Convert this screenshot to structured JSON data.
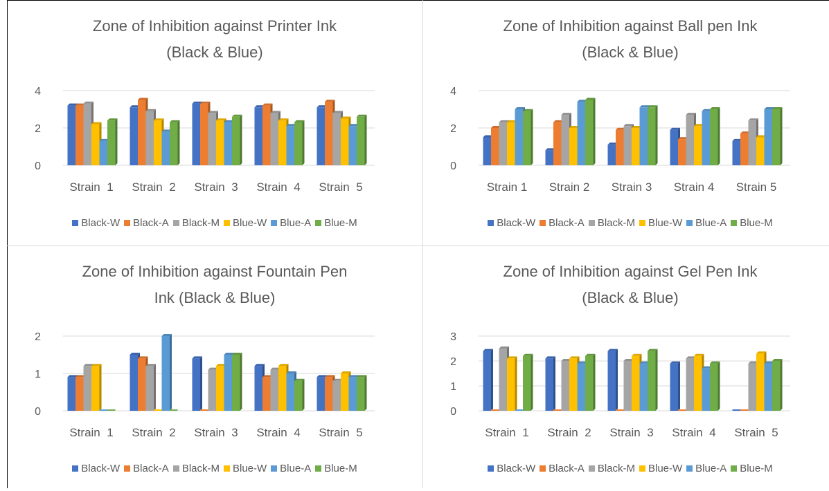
{
  "series_names": [
    "Black-W",
    "Black-A",
    "Black-M",
    "Blue-W",
    "Blue-A",
    "Blue-M"
  ],
  "colors": [
    "#4472C4",
    "#ED7D31",
    "#A5A5A5",
    "#FFC000",
    "#5B9BD5",
    "#70AD47"
  ],
  "chart_data": [
    {
      "type": "bar",
      "title_lines": [
        "Zone of Inhibition against Printer Ink",
        "(Black & Blue)"
      ],
      "categories": [
        "Strain  1",
        "Strain  2",
        "Strain  3",
        "Strain  4",
        "Strain  5"
      ],
      "ylim": [
        0,
        4
      ],
      "yticks": [
        "0",
        "2",
        "4"
      ],
      "legend": "bottom",
      "series": [
        {
          "name": "Black-W",
          "values": [
            3.2,
            3.1,
            3.3,
            3.1,
            3.1
          ]
        },
        {
          "name": "Black-A",
          "values": [
            3.2,
            3.5,
            3.3,
            3.2,
            3.4
          ]
        },
        {
          "name": "Black-M",
          "values": [
            3.3,
            2.9,
            2.8,
            2.8,
            2.8
          ]
        },
        {
          "name": "Blue-W",
          "values": [
            2.2,
            2.4,
            2.4,
            2.4,
            2.5
          ]
        },
        {
          "name": "Blue-A",
          "values": [
            1.3,
            1.8,
            2.3,
            2.1,
            2.1
          ]
        },
        {
          "name": "Blue-M",
          "values": [
            2.4,
            2.3,
            2.6,
            2.3,
            2.6
          ]
        }
      ]
    },
    {
      "type": "bar",
      "title_lines": [
        "Zone of Inhibition against Ball pen Ink",
        "(Black & Blue)"
      ],
      "categories": [
        "Strain 1",
        "Strain 2",
        "Strain 3",
        "Strain 4",
        "Strain 5"
      ],
      "ylim": [
        0,
        4
      ],
      "yticks": [
        "0",
        "2",
        "4"
      ],
      "legend": "bottom",
      "series": [
        {
          "name": "Black-W",
          "values": [
            1.5,
            0.8,
            1.1,
            1.9,
            1.3
          ]
        },
        {
          "name": "Black-A",
          "values": [
            2.0,
            2.3,
            1.9,
            1.4,
            1.7
          ]
        },
        {
          "name": "Black-M",
          "values": [
            2.3,
            2.7,
            2.1,
            2.7,
            2.4
          ]
        },
        {
          "name": "Blue-W",
          "values": [
            2.3,
            2.0,
            2.0,
            2.1,
            1.5
          ]
        },
        {
          "name": "Blue-A",
          "values": [
            3.0,
            3.4,
            3.1,
            2.9,
            3.0
          ]
        },
        {
          "name": "Blue-M",
          "values": [
            2.9,
            3.5,
            3.1,
            3.0,
            3.0
          ]
        }
      ]
    },
    {
      "type": "bar",
      "title_lines": [
        "Zone of Inhibition against Fountain Pen",
        "Ink (Black & Blue)"
      ],
      "categories": [
        "Strain  1",
        "Strain  2",
        "Strain  3",
        "Strain  4",
        "Strain  5"
      ],
      "ylim": [
        0,
        2
      ],
      "yticks": [
        "0",
        "1",
        "2"
      ],
      "legend": "bottom",
      "series": [
        {
          "name": "Black-W",
          "values": [
            0.9,
            1.5,
            1.4,
            1.2,
            0.9
          ]
        },
        {
          "name": "Black-A",
          "values": [
            0.9,
            1.4,
            0,
            0.9,
            0.9
          ]
        },
        {
          "name": "Black-M",
          "values": [
            1.2,
            1.2,
            1.1,
            1.1,
            0.8
          ]
        },
        {
          "name": "Blue-W",
          "values": [
            1.2,
            0,
            1.2,
            1.2,
            1.0
          ]
        },
        {
          "name": "Blue-A",
          "values": [
            0,
            2.0,
            1.5,
            1.0,
            0.9
          ]
        },
        {
          "name": "Blue-M",
          "values": [
            0,
            0,
            1.5,
            0.8,
            0.9
          ]
        }
      ]
    },
    {
      "type": "bar",
      "title_lines": [
        "Zone of Inhibition against Gel Pen Ink",
        "(Black & Blue)"
      ],
      "categories": [
        "Strain  1",
        "Strain  2",
        "Strain  3",
        "Strain  4",
        "Strain  5"
      ],
      "ylim": [
        0,
        3
      ],
      "yticks": [
        "0",
        "1",
        "2",
        "3"
      ],
      "legend": "bottom",
      "series": [
        {
          "name": "Black-W",
          "values": [
            2.4,
            2.1,
            2.4,
            1.9,
            0
          ]
        },
        {
          "name": "Black-A",
          "values": [
            0,
            0,
            0,
            0,
            0
          ]
        },
        {
          "name": "Black-M",
          "values": [
            2.5,
            2.0,
            2.0,
            2.1,
            1.9
          ]
        },
        {
          "name": "Blue-W",
          "values": [
            2.1,
            2.1,
            2.2,
            2.2,
            2.3
          ]
        },
        {
          "name": "Blue-A",
          "values": [
            0,
            1.9,
            1.9,
            1.7,
            1.9
          ]
        },
        {
          "name": "Blue-M",
          "values": [
            2.2,
            2.2,
            2.4,
            1.9,
            2.0
          ]
        }
      ]
    }
  ]
}
